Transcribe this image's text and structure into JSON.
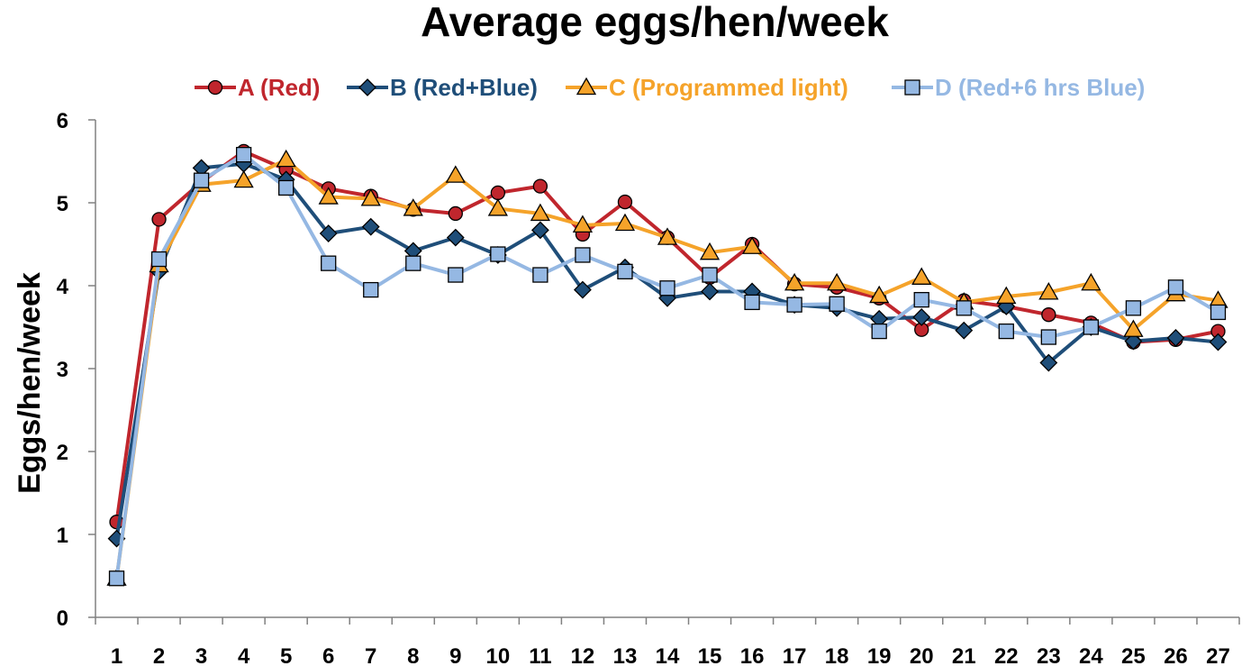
{
  "chart_data": {
    "type": "line",
    "title": "Average eggs/hen/week",
    "xlabel": "",
    "ylabel": "Eggs/hen/week",
    "ylim": [
      0,
      6
    ],
    "yticks": [
      0,
      1,
      2,
      3,
      4,
      5,
      6
    ],
    "grid": false,
    "legend_position": "top",
    "x": [
      "1",
      "2",
      "3",
      "4",
      "5",
      "6",
      "7",
      "8",
      "9",
      "10",
      "11",
      "12",
      "13",
      "14",
      "15",
      "16",
      "17",
      "18",
      "19",
      "20",
      "21",
      "22",
      "23",
      "24",
      "25",
      "26",
      "27"
    ],
    "series": [
      {
        "name": "A (Red)",
        "color": "#c0262d",
        "marker": "circle",
        "values": [
          1.15,
          4.8,
          5.25,
          5.62,
          5.4,
          5.17,
          5.08,
          4.92,
          4.87,
          5.12,
          5.2,
          4.62,
          5.01,
          4.58,
          4.1,
          4.5,
          4.02,
          3.98,
          3.85,
          3.47,
          3.82,
          3.75,
          3.65,
          3.55,
          3.32,
          3.35,
          3.45
        ]
      },
      {
        "name": "B (Red+Blue)",
        "color": "#1f4e79",
        "marker": "diamond",
        "values": [
          0.95,
          4.17,
          5.42,
          5.47,
          5.28,
          4.63,
          4.71,
          4.42,
          4.58,
          4.37,
          4.67,
          3.95,
          4.22,
          3.85,
          3.93,
          3.93,
          3.77,
          3.73,
          3.6,
          3.62,
          3.46,
          3.75,
          3.07,
          3.5,
          3.33,
          3.37,
          3.32
        ]
      },
      {
        "name": "C (Programmed light)",
        "color": "#f5a32a",
        "marker": "triangle",
        "values": [
          0.47,
          4.25,
          5.22,
          5.27,
          5.52,
          5.07,
          5.05,
          4.93,
          5.33,
          4.93,
          4.87,
          4.73,
          4.75,
          4.58,
          4.4,
          4.47,
          4.03,
          4.03,
          3.88,
          4.1,
          3.8,
          3.87,
          3.92,
          4.03,
          3.47,
          3.9,
          3.82
        ]
      },
      {
        "name": "D (Red+6 hrs Blue)",
        "color": "#95b8e3",
        "marker": "square",
        "values": [
          0.47,
          4.32,
          5.27,
          5.58,
          5.18,
          4.27,
          3.95,
          4.27,
          4.13,
          4.38,
          4.13,
          4.37,
          4.17,
          3.97,
          4.13,
          3.8,
          3.77,
          3.78,
          3.45,
          3.83,
          3.73,
          3.45,
          3.38,
          3.5,
          3.73,
          3.98,
          3.68
        ]
      }
    ]
  }
}
